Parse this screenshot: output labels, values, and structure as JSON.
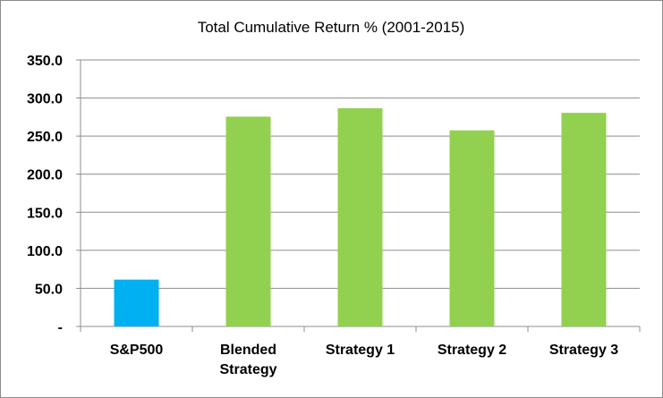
{
  "chart_data": {
    "type": "bar",
    "title": "Total Cumulative Return % (2001-2015)",
    "xlabel": "",
    "ylabel": "",
    "categories": [
      [
        "S&P500"
      ],
      [
        "Blended",
        "Strategy"
      ],
      [
        "Strategy 1"
      ],
      [
        "Strategy 2"
      ],
      [
        "Strategy 3"
      ]
    ],
    "values": [
      61.5,
      275.5,
      286.5,
      257.5,
      280.5
    ],
    "bar_colors": [
      "#00b0f0",
      "#92d050",
      "#92d050",
      "#92d050",
      "#92d050"
    ],
    "ylim": [
      0,
      350
    ],
    "yticks": [
      0,
      50,
      100,
      150,
      200,
      250,
      300,
      350
    ],
    "ytick_labels": [
      "-",
      "50.0",
      "100.0",
      "150.0",
      "200.0",
      "250.0",
      "300.0",
      "350.0"
    ],
    "grid": true,
    "legend": "none"
  }
}
